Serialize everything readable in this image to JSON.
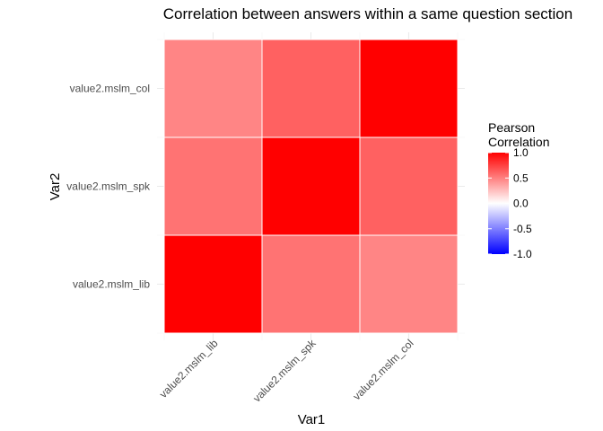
{
  "chart_data": {
    "type": "heatmap",
    "title": "Correlation between answers within a same question section",
    "xlabel": "Var1",
    "ylabel": "Var2",
    "x_categories": [
      "value2.mslm_lib",
      "value2.mslm_spk",
      "value2.mslm_col"
    ],
    "y_categories": [
      "value2.mslm_lib",
      "value2.mslm_spk",
      "value2.mslm_col"
    ],
    "values": [
      [
        1.0,
        0.55,
        0.48
      ],
      [
        0.55,
        1.0,
        0.62
      ],
      [
        0.48,
        0.62,
        1.0
      ]
    ],
    "grid": true,
    "legend": {
      "title_lines": [
        "Pearson",
        "Correlation"
      ],
      "ticks": [
        "1.0",
        "0.5",
        "0.0",
        "-0.5",
        "-1.0"
      ],
      "tick_values": [
        1.0,
        0.5,
        0.0,
        -0.5,
        -1.0
      ],
      "range": [
        -1,
        1
      ],
      "position": "right"
    },
    "colors": {
      "low": "#0000ff",
      "mid": "#ffffff",
      "high": "#ff0000",
      "tile_border": "#ffffff",
      "grid": "#ebebeb"
    }
  }
}
